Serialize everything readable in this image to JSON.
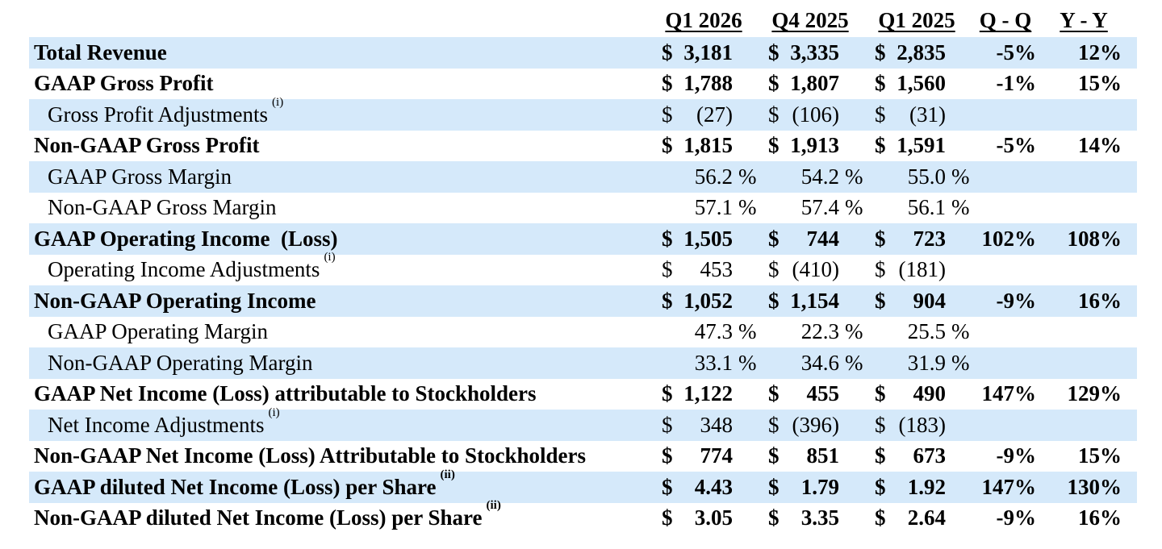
{
  "colors": {
    "row_band": "#d5e9fa",
    "text": "#000000"
  },
  "table": {
    "columns": [
      "Q1 2026",
      "Q4 2025",
      "Q1 2025",
      "Q - Q",
      "Y - Y"
    ],
    "rows": [
      {
        "label": "Total Revenue",
        "sup": "",
        "cur": "$",
        "suf": "",
        "v1": "3,181",
        "v2": "3,335",
        "v3": "2,835",
        "qq": "-5%",
        "yy": "12%"
      },
      {
        "label": "GAAP Gross Profit",
        "sup": "",
        "cur": "$",
        "suf": "",
        "v1": "1,788",
        "v2": "1,807",
        "v3": "1,560",
        "qq": "-1%",
        "yy": "15%"
      },
      {
        "label": "Gross Profit Adjustments",
        "sup": "(i)",
        "cur": "$",
        "suf": "",
        "v1": "(27)",
        "v2": "(106)",
        "v3": "(31)",
        "qq": "",
        "yy": ""
      },
      {
        "label": "Non-GAAP Gross Profit",
        "sup": "",
        "cur": "$",
        "suf": "",
        "v1": "1,815",
        "v2": "1,913",
        "v3": "1,591",
        "qq": "-5%",
        "yy": "14%"
      },
      {
        "label": "GAAP Gross Margin",
        "sup": "",
        "cur": "",
        "suf": "%",
        "v1": "56.2",
        "v2": "54.2",
        "v3": "55.0",
        "qq": "",
        "yy": ""
      },
      {
        "label": "Non-GAAP Gross Margin",
        "sup": "",
        "cur": "",
        "suf": "%",
        "v1": "57.1",
        "v2": "57.4",
        "v3": "56.1",
        "qq": "",
        "yy": ""
      },
      {
        "label": "GAAP Operating Income  (Loss)",
        "sup": "",
        "cur": "$",
        "suf": "",
        "v1": "1,505",
        "v2": "744",
        "v3": "723",
        "qq": "102%",
        "yy": "108%"
      },
      {
        "label": "Operating Income Adjustments",
        "sup": "(i)",
        "cur": "$",
        "suf": "",
        "v1": "453",
        "v2": "(410)",
        "v3": "(181)",
        "qq": "",
        "yy": ""
      },
      {
        "label": "Non-GAAP Operating Income",
        "sup": "",
        "cur": "$",
        "suf": "",
        "v1": "1,052",
        "v2": "1,154",
        "v3": "904",
        "qq": "-9%",
        "yy": "16%"
      },
      {
        "label": "GAAP Operating Margin",
        "sup": "",
        "cur": "",
        "suf": "%",
        "v1": "47.3",
        "v2": "22.3",
        "v3": "25.5",
        "qq": "",
        "yy": ""
      },
      {
        "label": "Non-GAAP Operating Margin",
        "sup": "",
        "cur": "",
        "suf": "%",
        "v1": "33.1",
        "v2": "34.6",
        "v3": "31.9",
        "qq": "",
        "yy": ""
      },
      {
        "label": "GAAP Net Income (Loss) attributable to Stockholders",
        "sup": "",
        "cur": "$",
        "suf": "",
        "v1": "1,122",
        "v2": "455",
        "v3": "490",
        "qq": "147%",
        "yy": "129%"
      },
      {
        "label": "Net Income Adjustments",
        "sup": "(i)",
        "cur": "$",
        "suf": "",
        "v1": "348",
        "v2": "(396)",
        "v3": "(183)",
        "qq": "",
        "yy": ""
      },
      {
        "label": "Non-GAAP Net Income (Loss) Attributable to Stockholders",
        "sup": "",
        "cur": "$",
        "suf": "",
        "v1": "774",
        "v2": "851",
        "v3": "673",
        "qq": "-9%",
        "yy": "15%"
      },
      {
        "label": "GAAP diluted Net Income (Loss) per Share",
        "sup": "(ii)",
        "cur": "$",
        "suf": "",
        "v1": "4.43",
        "v2": "1.79",
        "v3": "1.92",
        "qq": "147%",
        "yy": "130%"
      },
      {
        "label": "Non-GAAP diluted Net Income (Loss) per Share",
        "sup": "(ii)",
        "cur": "$",
        "suf": "",
        "v1": "3.05",
        "v2": "3.35",
        "v3": "2.64",
        "qq": "-9%",
        "yy": "16%"
      }
    ]
  }
}
